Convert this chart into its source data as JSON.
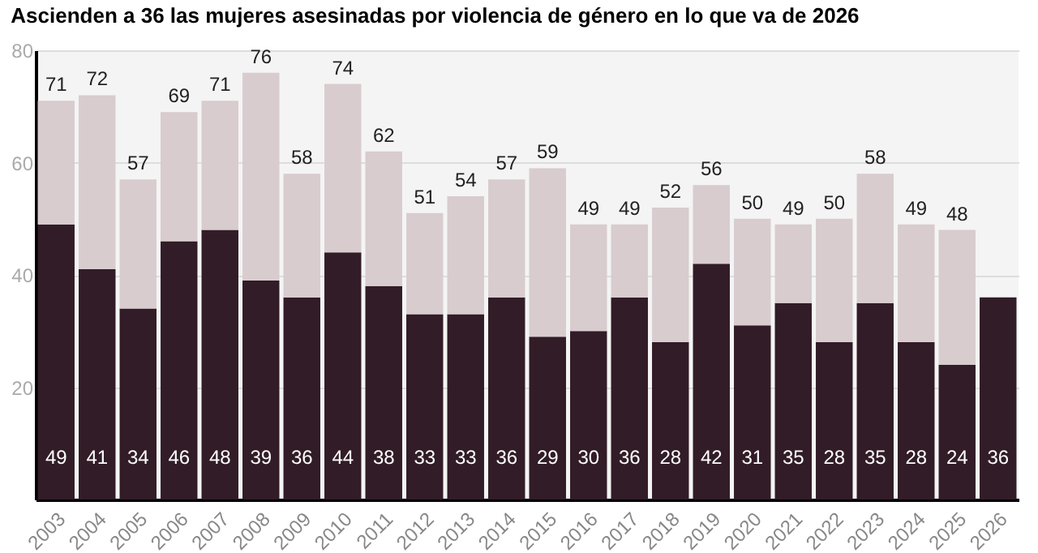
{
  "chart_data": {
    "type": "bar",
    "title": "Ascienden a 36 las mujeres asesinadas por violencia de género en lo que va de 2026",
    "categories": [
      "2003",
      "2004",
      "2005",
      "2006",
      "2007",
      "2008",
      "2009",
      "2010",
      "2011",
      "2012",
      "2013",
      "2014",
      "2015",
      "2016",
      "2017",
      "2018",
      "2019",
      "2020",
      "2021",
      "2022",
      "2023",
      "2024",
      "2025",
      "2026"
    ],
    "stacked": true,
    "series": [
      {
        "color": "#321c27",
        "values": [
          49,
          41,
          34,
          46,
          48,
          39,
          36,
          44,
          38,
          33,
          33,
          36,
          29,
          30,
          36,
          28,
          42,
          31,
          35,
          28,
          35,
          28,
          24,
          36
        ],
        "value_labels": [
          "49",
          "41",
          "34",
          "46",
          "48",
          "39",
          "36",
          "44",
          "38",
          "33",
          "33",
          "36",
          "29",
          "30",
          "36",
          "28",
          "42",
          "31",
          "35",
          "28",
          "35",
          "28",
          "24",
          "36"
        ]
      },
      {
        "color": "#d8cccf",
        "values": [
          22,
          31,
          23,
          23,
          23,
          37,
          22,
          30,
          24,
          18,
          21,
          21,
          30,
          19,
          13,
          24,
          14,
          19,
          14,
          22,
          23,
          21,
          24,
          null
        ]
      }
    ],
    "totals": [
      "71",
      "72",
      "57",
      "69",
      "71",
      "76",
      "58",
      "74",
      "62",
      "51",
      "54",
      "57",
      "59",
      "49",
      "49",
      "52",
      "56",
      "50",
      "49",
      "50",
      "58",
      "49",
      "48",
      null
    ],
    "ylim": [
      0,
      80
    ],
    "yticks": [
      20,
      40,
      60,
      80
    ],
    "grid": "y"
  }
}
